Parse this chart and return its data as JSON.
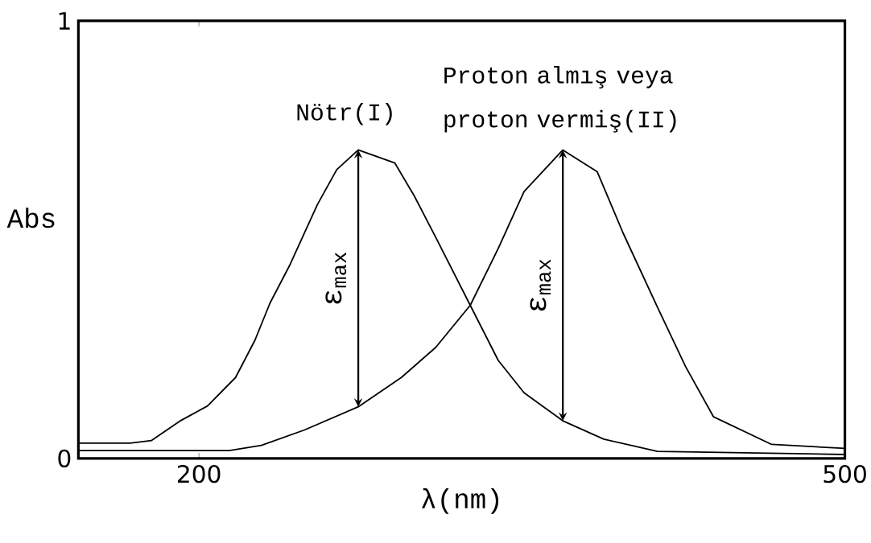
{
  "chart_data": {
    "type": "line",
    "xlabel": "λ(nm)",
    "ylabel": "Abs",
    "xlim": [
      144,
      500
    ],
    "ylim": [
      0,
      1
    ],
    "xticks": [
      200,
      500
    ],
    "yticks": [
      0,
      1
    ],
    "grid": false,
    "marker": "none",
    "line_style": "solid",
    "series": [
      {
        "name": "Nötr(I)",
        "color": "#000000",
        "x": [
          144,
          168,
          178,
          191,
          204,
          217,
          226,
          233,
          242,
          255,
          264,
          274,
          291,
          300,
          310,
          326,
          339,
          351,
          369,
          388,
          413,
          500
        ],
        "values": [
          0.035,
          0.035,
          0.041,
          0.085,
          0.12,
          0.185,
          0.27,
          0.355,
          0.44,
          0.58,
          0.66,
          0.705,
          0.675,
          0.6,
          0.505,
          0.35,
          0.224,
          0.15,
          0.086,
          0.044,
          0.016,
          0.009
        ]
      },
      {
        "name": "Proton almış veya proton vermiş(II)",
        "color": "#000000",
        "x": [
          144,
          214,
          229,
          249,
          274,
          294,
          310,
          326,
          339,
          351,
          369,
          385,
          397,
          413,
          426,
          439,
          466,
          500
        ],
        "values": [
          0.018,
          0.018,
          0.03,
          0.065,
          0.118,
          0.185,
          0.254,
          0.35,
          0.48,
          0.61,
          0.705,
          0.655,
          0.515,
          0.345,
          0.21,
          0.095,
          0.032,
          0.023
        ]
      }
    ],
    "annotations": [
      "ε$_{max}$",
      "ε$_{max}$"
    ]
  }
}
